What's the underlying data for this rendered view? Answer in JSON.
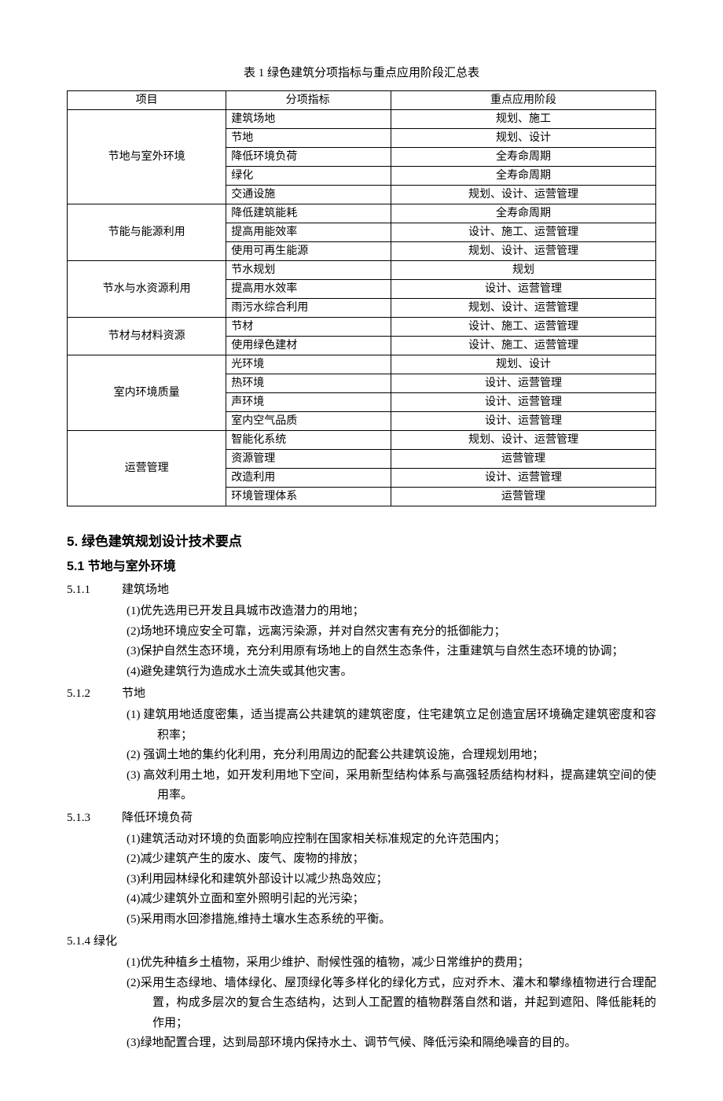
{
  "table": {
    "title": "表 1 绿色建筑分项指标与重点应用阶段汇总表",
    "headers": [
      "项目",
      "分项指标",
      "重点应用阶段"
    ],
    "groups": [
      {
        "project": "节地与室外环境",
        "rows": [
          {
            "indicator": "建筑场地",
            "phase": "规划、施工"
          },
          {
            "indicator": "节地",
            "phase": "规划、设计"
          },
          {
            "indicator": "降低环境负荷",
            "phase": "全寿命周期"
          },
          {
            "indicator": "绿化",
            "phase": "全寿命周期"
          },
          {
            "indicator": "交通设施",
            "phase": "规划、设计、运营管理"
          }
        ]
      },
      {
        "project": "节能与能源利用",
        "rows": [
          {
            "indicator": "降低建筑能耗",
            "phase": "全寿命周期"
          },
          {
            "indicator": "提高用能效率",
            "phase": "设计、施工、运营管理"
          },
          {
            "indicator": "使用可再生能源",
            "phase": "规划、设计、运营管理"
          }
        ]
      },
      {
        "project": "节水与水资源利用",
        "rows": [
          {
            "indicator": "节水规划",
            "phase": "规划"
          },
          {
            "indicator": "提高用水效率",
            "phase": "设计、运营管理"
          },
          {
            "indicator": "雨污水综合利用",
            "phase": "规划、设计、运营管理"
          }
        ]
      },
      {
        "project": "节材与材料资源",
        "rows": [
          {
            "indicator": "节材",
            "phase": "设计、施工、运营管理"
          },
          {
            "indicator": "使用绿色建材",
            "phase": "设计、施工、运营管理"
          }
        ]
      },
      {
        "project": "室内环境质量",
        "rows": [
          {
            "indicator": "光环境",
            "phase": "规划、设计"
          },
          {
            "indicator": "热环境",
            "phase": "设计、运营管理"
          },
          {
            "indicator": "声环境",
            "phase": "设计、运营管理"
          },
          {
            "indicator": "室内空气品质",
            "phase": "设计、运营管理"
          }
        ]
      },
      {
        "project": "运营管理",
        "rows": [
          {
            "indicator": "智能化系统",
            "phase": "规划、设计、运营管理"
          },
          {
            "indicator": "资源管理",
            "phase": "运营管理"
          },
          {
            "indicator": "改造利用",
            "phase": "设计、运营管理"
          },
          {
            "indicator": "环境管理体系",
            "phase": "运营管理"
          }
        ]
      }
    ]
  },
  "section5": {
    "title": "5. 绿色建筑规划设计技术要点",
    "sub_title": "5.1 节地与室外环境",
    "s511": {
      "num": "5.1.1",
      "name": "建筑场地",
      "items": [
        "(1)优先选用已开发且具城市改造潜力的用地；",
        "(2)场地环境应安全可靠，远离污染源，并对自然灾害有充分的抵御能力；",
        "(3)保护自然生态环境，充分利用原有场地上的自然生态条件，注重建筑与自然生态环境的协调；",
        "(4)避免建筑行为造成水土流失或其他灾害。"
      ]
    },
    "s512": {
      "num": "5.1.2",
      "name": "节地",
      "items": [
        "(1) 建筑用地适度密集，适当提高公共建筑的建筑密度，住宅建筑立足创造宜居环境确定建筑密度和容积率；",
        "(2) 强调土地的集约化利用，充分利用周边的配套公共建筑设施，合理规划用地；",
        "(3) 高效利用土地，如开发利用地下空间，采用新型结构体系与高强轻质结构材料，提高建筑空间的使用率。"
      ]
    },
    "s513": {
      "num": "5.1.3",
      "name": "降低环境负荷",
      "items": [
        "(1)建筑活动对环境的负面影响应控制在国家相关标准规定的允许范围内；",
        "(2)减少建筑产生的废水、废气、废物的排放；",
        "(3)利用园林绿化和建筑外部设计以减少热岛效应；",
        "(4)减少建筑外立面和室外照明引起的光污染；",
        "(5)采用雨水回渗措施,维持土壤水生态系统的平衡。"
      ]
    },
    "s514": {
      "num": "5.1.4",
      "name": "绿化",
      "items": [
        "(1)优先种植乡土植物，采用少维护、耐候性强的植物，减少日常维护的费用；",
        "(2)采用生态绿地、墙体绿化、屋顶绿化等多样化的绿化方式，应对乔木、灌木和攀缘植物进行合理配置，构成多层次的复合生态结构，达到人工配置的植物群落自然和谐，并起到遮阳、降低能耗的作用；",
        "(3)绿地配置合理，达到局部环境内保持水土、调节气候、降低污染和隔绝噪音的目的。"
      ]
    }
  }
}
